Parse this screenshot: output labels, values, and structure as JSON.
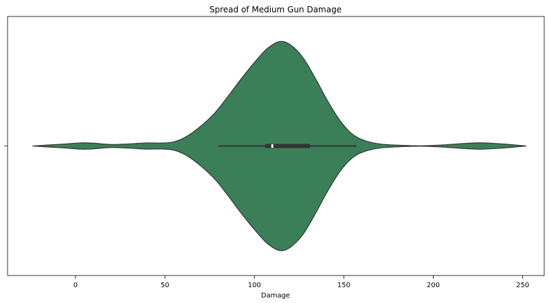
{
  "chart_data": {
    "type": "violin",
    "title": "Spread of Medium Gun Damage",
    "xlabel": "Damage",
    "ylabel": "",
    "xlim": [
      -38,
      262
    ],
    "xticks": [
      0,
      50,
      100,
      150,
      200,
      250
    ],
    "grid": false,
    "legend": "none",
    "fill_color": "#3b7f58",
    "edge_color": "#333333",
    "density_profile": [
      {
        "x": -24,
        "w": 0.0
      },
      {
        "x": -15,
        "w": 0.01
      },
      {
        "x": -5,
        "w": 0.02
      },
      {
        "x": 3,
        "w": 0.03
      },
      {
        "x": 10,
        "w": 0.027
      },
      {
        "x": 20,
        "w": 0.014
      },
      {
        "x": 30,
        "w": 0.02
      },
      {
        "x": 40,
        "w": 0.03
      },
      {
        "x": 48,
        "w": 0.028
      },
      {
        "x": 55,
        "w": 0.04
      },
      {
        "x": 62,
        "w": 0.09
      },
      {
        "x": 70,
        "w": 0.19
      },
      {
        "x": 78,
        "w": 0.32
      },
      {
        "x": 85,
        "w": 0.47
      },
      {
        "x": 92,
        "w": 0.63
      },
      {
        "x": 100,
        "w": 0.8
      },
      {
        "x": 107,
        "w": 0.93
      },
      {
        "x": 114,
        "w": 1.0
      },
      {
        "x": 120,
        "w": 0.97
      },
      {
        "x": 127,
        "w": 0.85
      },
      {
        "x": 134,
        "w": 0.65
      },
      {
        "x": 141,
        "w": 0.43
      },
      {
        "x": 148,
        "w": 0.24
      },
      {
        "x": 155,
        "w": 0.11
      },
      {
        "x": 162,
        "w": 0.05
      },
      {
        "x": 170,
        "w": 0.02
      },
      {
        "x": 180,
        "w": 0.008
      },
      {
        "x": 193,
        "w": 0.002
      },
      {
        "x": 205,
        "w": 0.01
      },
      {
        "x": 218,
        "w": 0.025
      },
      {
        "x": 228,
        "w": 0.03
      },
      {
        "x": 240,
        "w": 0.018
      },
      {
        "x": 252,
        "w": 0.0
      }
    ],
    "box": {
      "whisker_low": 80,
      "q1": 106,
      "median": 110,
      "q3": 131,
      "whisker_high": 157
    }
  }
}
